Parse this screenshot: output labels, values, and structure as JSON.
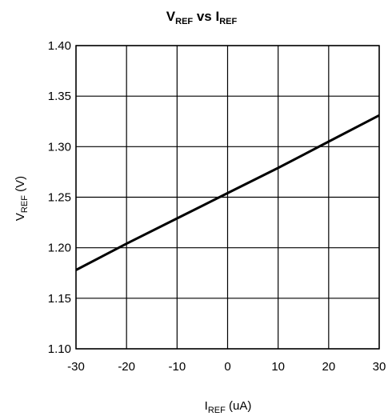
{
  "chart_data": {
    "type": "line",
    "title": {
      "main": "V",
      "main_sub": "REF",
      "mid": " vs I",
      "mid_sub": "REF"
    },
    "xlabel": {
      "main": "I",
      "sub": "REF",
      "unit": " (uA)"
    },
    "ylabel": {
      "main": "V",
      "sub": "REF",
      "unit": " (V)"
    },
    "xlim": [
      -30,
      30
    ],
    "ylim": [
      1.1,
      1.4
    ],
    "xticks": [
      -30,
      -20,
      -10,
      0,
      10,
      20,
      30
    ],
    "yticks": [
      1.1,
      1.15,
      1.2,
      1.25,
      1.3,
      1.35,
      1.4
    ],
    "x_tick_labels": [
      "-30",
      "-20",
      "-10",
      "0",
      "10",
      "20",
      "30"
    ],
    "y_tick_labels": [
      "1.10",
      "1.15",
      "1.20",
      "1.25",
      "1.30",
      "1.35",
      "1.40"
    ],
    "grid": true,
    "series": [
      {
        "x": [
          -30,
          -20,
          -10,
          0,
          10,
          20,
          30
        ],
        "y": [
          1.178,
          1.204,
          1.229,
          1.254,
          1.279,
          1.305,
          1.331
        ]
      }
    ],
    "line_color": "#000000",
    "grid_color": "#000000"
  }
}
